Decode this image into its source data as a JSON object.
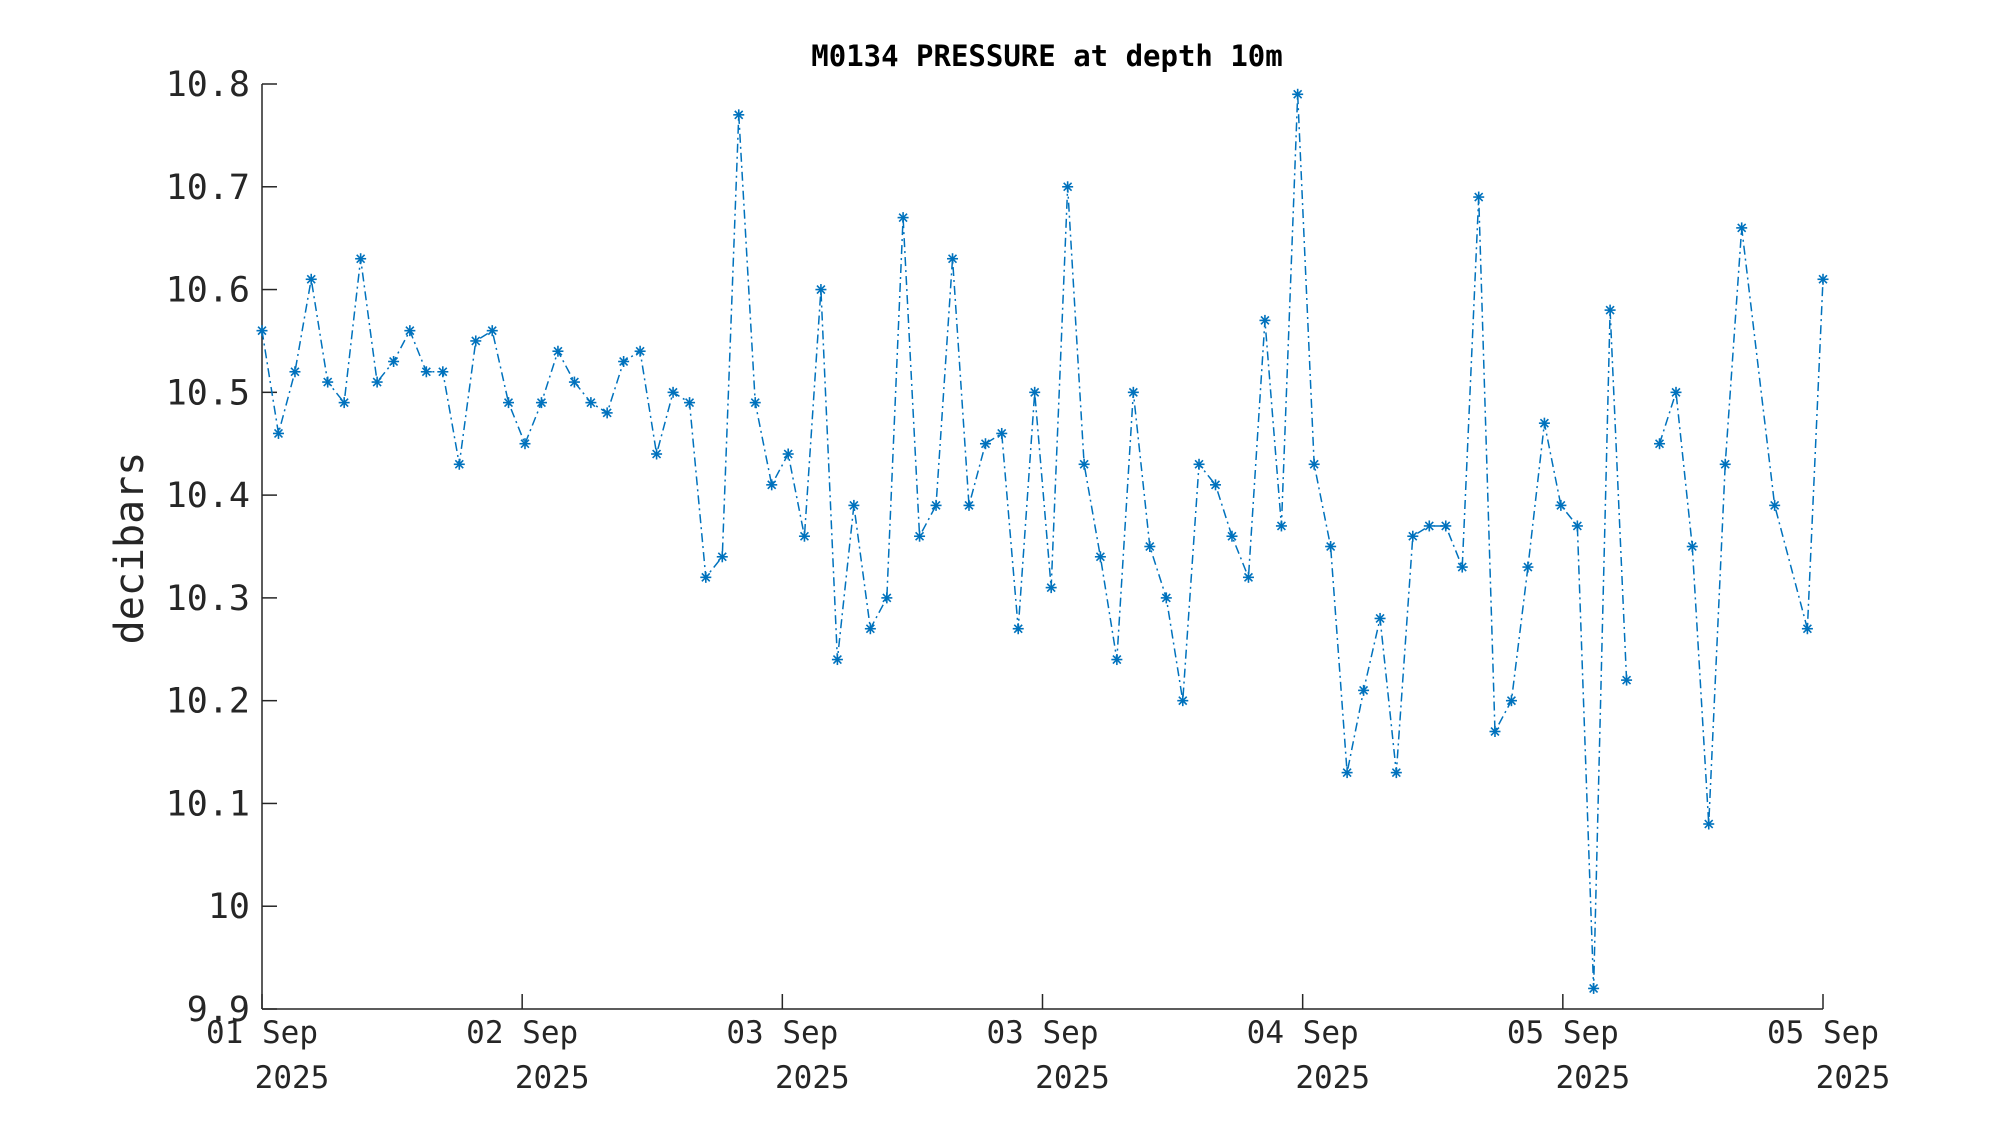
{
  "chart_data": {
    "type": "line",
    "title": "M0134 PRESSURE at depth 10m",
    "xlabel": "",
    "ylabel": "decibars",
    "ylim": [
      9.9,
      10.8
    ],
    "yticks": [
      "9.9",
      "10",
      "10.1",
      "10.2",
      "10.3",
      "10.4",
      "10.5",
      "10.6",
      "10.7",
      "10.8"
    ],
    "xlim": [
      "2025-09-01T00:00",
      "2025-09-06T00:00"
    ],
    "xticks": [
      {
        "line1": "01 Sep",
        "line2": "2025"
      },
      {
        "line1": "02 Sep",
        "line2": "2025"
      },
      {
        "line1": "03 Sep",
        "line2": "2025"
      },
      {
        "line1": "03 Sep",
        "line2": "2025"
      },
      {
        "line1": "04 Sep",
        "line2": "2025"
      },
      {
        "line1": "05 Sep",
        "line2": "2025"
      },
      {
        "line1": "05 Sep",
        "line2": "2025"
      }
    ],
    "color": "#0072BD",
    "marker": "asterisk",
    "line_style": "dash-dot",
    "grid": false,
    "legend": "none",
    "series": [
      {
        "points": [
          [
            "2025-09-01T00:00",
            10.56
          ],
          [
            "2025-09-01T01:16",
            10.46
          ],
          [
            "2025-09-01T02:32",
            10.52
          ],
          [
            "2025-09-01T03:47",
            10.61
          ],
          [
            "2025-09-01T05:03",
            10.51
          ],
          [
            "2025-09-01T06:19",
            10.49
          ],
          [
            "2025-09-01T07:35",
            10.63
          ],
          [
            "2025-09-01T08:51",
            10.51
          ],
          [
            "2025-09-01T10:07",
            10.53
          ],
          [
            "2025-09-01T11:22",
            10.56
          ],
          [
            "2025-09-01T12:38",
            10.52
          ],
          [
            "2025-09-01T13:54",
            10.52
          ],
          [
            "2025-09-01T15:10",
            10.43
          ],
          [
            "2025-09-01T16:26",
            10.55
          ],
          [
            "2025-09-01T17:42",
            10.56
          ],
          [
            "2025-09-01T18:57",
            10.49
          ],
          [
            "2025-09-01T20:13",
            10.45
          ],
          [
            "2025-09-01T21:29",
            10.49
          ],
          [
            "2025-09-01T22:45",
            10.54
          ],
          [
            "2025-09-02T00:01",
            10.51
          ],
          [
            "2025-09-02T01:17",
            10.49
          ],
          [
            "2025-09-02T02:32",
            10.48
          ],
          [
            "2025-09-02T03:48",
            10.53
          ],
          [
            "2025-09-02T05:04",
            10.54
          ],
          [
            "2025-09-02T06:20",
            10.44
          ],
          [
            "2025-09-02T07:36",
            10.5
          ],
          [
            "2025-09-02T08:52",
            10.49
          ],
          [
            "2025-09-02T10:07",
            10.32
          ],
          [
            "2025-09-02T11:23",
            10.34
          ],
          [
            "2025-09-02T12:39",
            10.77
          ],
          [
            "2025-09-02T13:55",
            10.49
          ],
          [
            "2025-09-02T15:11",
            10.41
          ],
          [
            "2025-09-02T16:27",
            10.44
          ],
          [
            "2025-09-02T17:42",
            10.36
          ],
          [
            "2025-09-02T18:58",
            10.6
          ],
          [
            "2025-09-02T20:14",
            10.24
          ],
          [
            "2025-09-02T21:30",
            10.39
          ],
          [
            "2025-09-02T22:46",
            10.27
          ],
          [
            "2025-09-03T00:02",
            10.3
          ],
          [
            "2025-09-03T01:17",
            10.67
          ],
          [
            "2025-09-03T02:33",
            10.36
          ],
          [
            "2025-09-03T03:49",
            10.39
          ],
          [
            "2025-09-03T05:05",
            10.63
          ],
          [
            "2025-09-03T06:21",
            10.39
          ],
          [
            "2025-09-03T07:37",
            10.45
          ],
          [
            "2025-09-03T08:52",
            10.46
          ],
          [
            "2025-09-03T10:08",
            10.27
          ],
          [
            "2025-09-03T11:24",
            10.5
          ],
          [
            "2025-09-03T12:40",
            10.31
          ],
          [
            "2025-09-03T13:56",
            10.7
          ],
          [
            "2025-09-03T15:12",
            10.43
          ],
          [
            "2025-09-03T16:27",
            10.34
          ],
          [
            "2025-09-03T17:43",
            10.24
          ],
          [
            "2025-09-03T18:59",
            10.5
          ],
          [
            "2025-09-03T20:15",
            10.35
          ],
          [
            "2025-09-03T21:31",
            10.3
          ],
          [
            "2025-09-03T22:47",
            10.2
          ],
          [
            "2025-09-04T00:02",
            10.43
          ],
          [
            "2025-09-04T01:18",
            10.41
          ],
          [
            "2025-09-04T02:34",
            10.36
          ],
          [
            "2025-09-04T03:50",
            10.32
          ],
          [
            "2025-09-04T05:06",
            10.57
          ],
          [
            "2025-09-04T06:22",
            10.37
          ],
          [
            "2025-09-04T07:37",
            10.79
          ],
          [
            "2025-09-04T08:53",
            10.43
          ],
          [
            "2025-09-04T10:09",
            10.35
          ],
          [
            "2025-09-04T11:25",
            10.13
          ],
          [
            "2025-09-04T12:41",
            10.21
          ],
          [
            "2025-09-04T13:57",
            10.28
          ],
          [
            "2025-09-04T15:12",
            10.13
          ],
          [
            "2025-09-04T16:28",
            10.36
          ],
          [
            "2025-09-04T17:44",
            10.37
          ],
          [
            "2025-09-04T19:00",
            10.37
          ],
          [
            "2025-09-04T20:16",
            10.33
          ],
          [
            "2025-09-04T21:32",
            10.69
          ],
          [
            "2025-09-04T22:47",
            10.17
          ],
          [
            "2025-09-05T00:03",
            10.2
          ],
          [
            "2025-09-05T01:19",
            10.33
          ],
          [
            "2025-09-05T02:35",
            10.47
          ],
          [
            "2025-09-05T03:51",
            10.39
          ],
          [
            "2025-09-05T05:07",
            10.37
          ],
          [
            "2025-09-05T06:22",
            9.92
          ],
          [
            "2025-09-05T07:38",
            10.58
          ],
          [
            "2025-09-05T08:54",
            10.22
          ]
        ]
      },
      {
        "points": [
          [
            "2025-09-05T11:26",
            10.45
          ],
          [
            "2025-09-05T12:42",
            10.5
          ],
          [
            "2025-09-05T13:57",
            10.35
          ],
          [
            "2025-09-05T15:13",
            10.08
          ],
          [
            "2025-09-05T16:29",
            10.43
          ],
          [
            "2025-09-05T17:45",
            10.66
          ],
          [
            "2025-09-05T20:17",
            10.39
          ],
          [
            "2025-09-05T22:48",
            10.27
          ],
          [
            "2025-09-06T00:00",
            10.61
          ]
        ]
      }
    ]
  }
}
